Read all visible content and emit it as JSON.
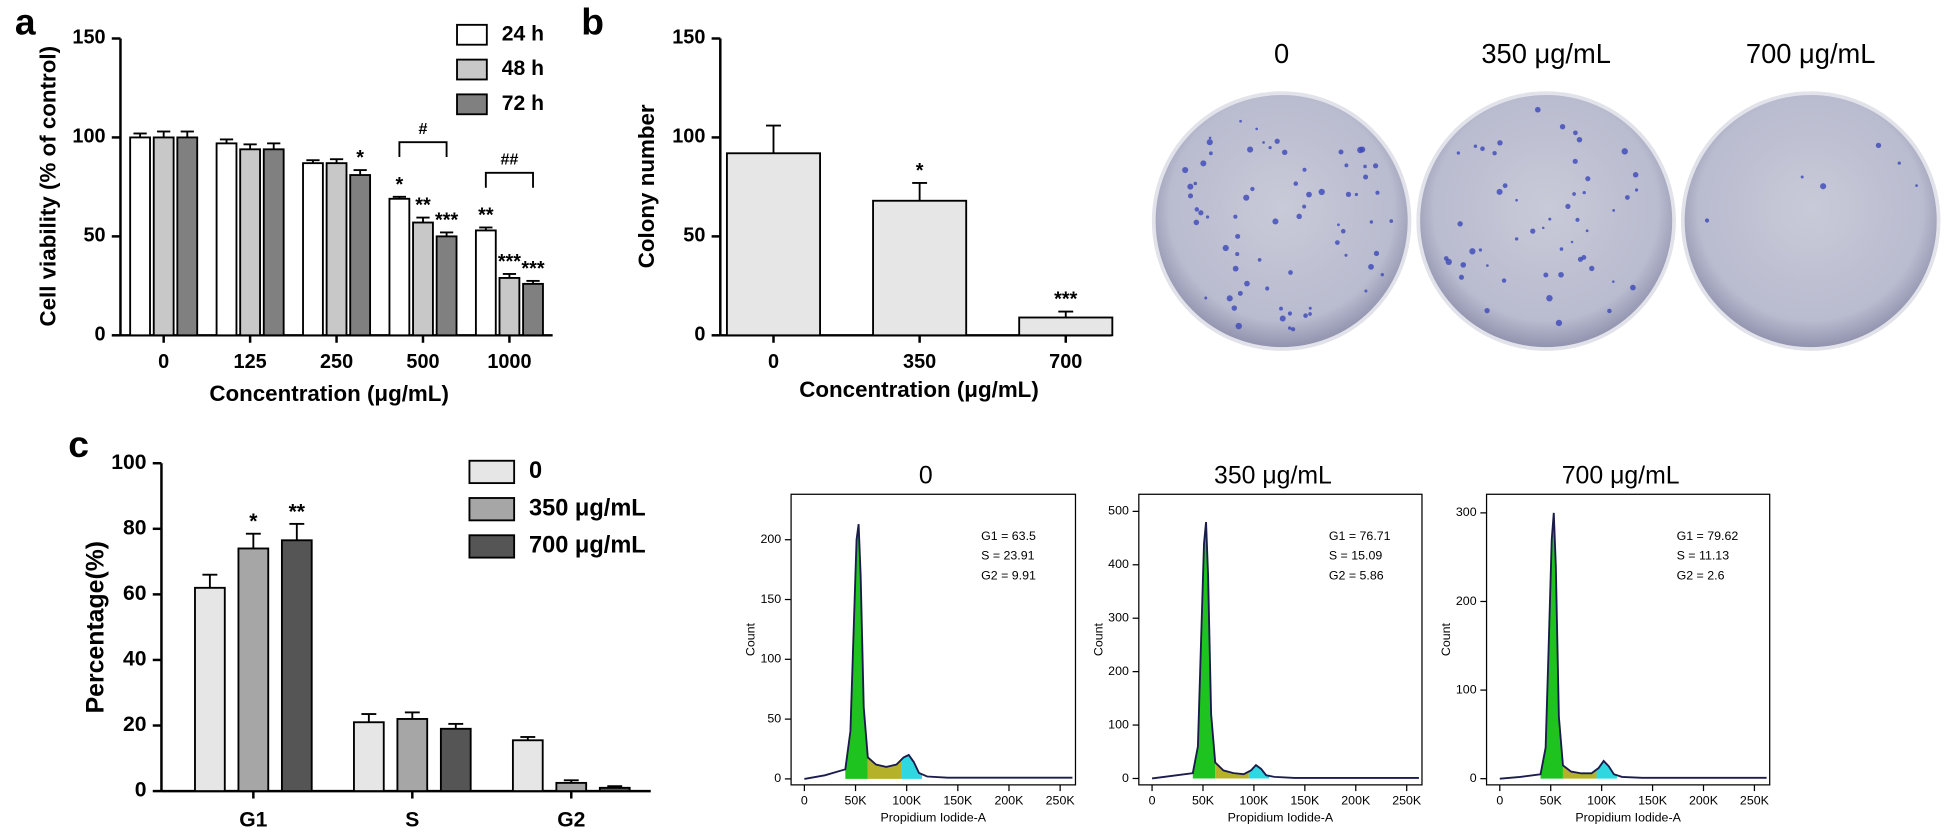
{
  "chart_data": [
    {
      "panel": "a",
      "type": "bar",
      "ylabel": "Cell viability (% of control)",
      "xlabel": "Concentration (μg/mL)",
      "categories": [
        "0",
        "125",
        "250",
        "500",
        "1000"
      ],
      "series": [
        {
          "name": "24 h",
          "color": "#ffffff",
          "values": [
            100,
            97,
            87,
            69,
            53
          ],
          "errors": [
            2,
            2,
            1.5,
            1,
            1.5
          ],
          "labels": [
            null,
            null,
            null,
            "*",
            "**"
          ]
        },
        {
          "name": "48 h",
          "color": "#c8c8c8",
          "values": [
            100,
            94,
            87,
            57,
            29
          ],
          "errors": [
            3,
            2.5,
            2,
            2.5,
            2
          ],
          "labels": [
            null,
            null,
            null,
            "**",
            "***"
          ]
        },
        {
          "name": "72 h",
          "color": "#808080",
          "values": [
            100,
            94,
            81,
            50,
            26
          ],
          "errors": [
            3,
            3,
            2.5,
            2,
            1.5
          ],
          "labels": [
            null,
            null,
            "*",
            "***",
            "***"
          ]
        }
      ],
      "bracket_labels": [
        null,
        null,
        null,
        "#",
        "##"
      ],
      "ylim": [
        0,
        150
      ],
      "yticks": [
        0,
        50,
        100,
        150
      ]
    },
    {
      "panel": "b",
      "type": "bar",
      "ylabel": "Colony number",
      "xlabel": "Concentration (μg/mL)",
      "categories": [
        "0",
        "350",
        "700"
      ],
      "series": [
        {
          "color": "#e6e6e6",
          "values": [
            92,
            68,
            9
          ],
          "errors": [
            14,
            9,
            3
          ],
          "labels": [
            null,
            "*",
            "***"
          ]
        }
      ],
      "ylim": [
        0,
        150
      ],
      "yticks": [
        0,
        50,
        100,
        150
      ]
    },
    {
      "panel": "c",
      "type": "bar",
      "ylabel": "Percentage(%)",
      "categories": [
        "G1",
        "S",
        "G2"
      ],
      "series": [
        {
          "name": "0",
          "color": "#e6e6e6",
          "values": [
            62,
            21,
            15.5
          ],
          "errors": [
            4,
            2.5,
            1
          ],
          "labels": [
            null,
            null,
            null
          ]
        },
        {
          "name": "350 μg/mL",
          "color": "#a6a6a6",
          "values": [
            74,
            22,
            2.5
          ],
          "errors": [
            4.5,
            2,
            0.8
          ],
          "labels": [
            "*",
            null,
            null
          ]
        },
        {
          "name": "700 μg/mL",
          "color": "#555555",
          "values": [
            76.5,
            19,
            1
          ],
          "errors": [
            5,
            1.5,
            0.5
          ],
          "labels": [
            "**",
            null,
            null
          ]
        }
      ],
      "ylim": [
        0,
        100
      ],
      "yticks": [
        0,
        20,
        40,
        60,
        80,
        100
      ]
    },
    {
      "type": "line",
      "title": "0",
      "ylabel": "Count",
      "xlabel": "Propidium Iodide-A",
      "annotations": [
        "G1  = 63.5",
        "S = 23.91",
        "G2  = 9.91"
      ],
      "x": [
        0,
        20000,
        40000,
        45000,
        48000,
        51000,
        53000,
        55000,
        58000,
        62000,
        70000,
        80000,
        90000,
        97000,
        102000,
        107000,
        112000,
        120000,
        140000,
        262000
      ],
      "series": [
        {
          "color": "#1b1b4d",
          "values": [
            0,
            3,
            8,
            40,
            120,
            200,
            213,
            170,
            60,
            18,
            12,
            10,
            12,
            18,
            20,
            14,
            5,
            2,
            1,
            1
          ]
        }
      ],
      "xlim": [
        -13000,
        265000
      ],
      "xticks": [
        0,
        {
          "value": 50000,
          "label": "50K"
        },
        {
          "value": 100000,
          "label": "100K"
        },
        {
          "value": 150000,
          "label": "150K"
        },
        {
          "value": 200000,
          "label": "200K"
        },
        {
          "value": 250000,
          "label": "250K"
        }
      ],
      "ylim": [
        -5,
        238
      ],
      "yticks": [
        0,
        50,
        100,
        150,
        200
      ]
    },
    {
      "type": "line",
      "title": "350 μg/mL",
      "ylabel": "Count",
      "xlabel": "Propidium Iodide-A",
      "annotations": [
        "G1  = 76.71",
        "S = 15.09",
        "G2  = 5.86"
      ],
      "x": [
        0,
        20000,
        40000,
        45000,
        48000,
        51000,
        53000,
        55000,
        58000,
        62000,
        70000,
        80000,
        90000,
        97000,
        102000,
        107000,
        112000,
        120000,
        140000,
        262000
      ],
      "series": [
        {
          "color": "#1b1b4d",
          "values": [
            0,
            5,
            10,
            60,
            250,
            440,
            480,
            380,
            120,
            30,
            15,
            10,
            8,
            15,
            25,
            18,
            6,
            3,
            1,
            1
          ]
        }
      ],
      "xlim": [
        -13000,
        265000
      ],
      "xticks": [
        0,
        {
          "value": 50000,
          "label": "50K"
        },
        {
          "value": 100000,
          "label": "100K"
        },
        {
          "value": 150000,
          "label": "150K"
        },
        {
          "value": 200000,
          "label": "200K"
        },
        {
          "value": 250000,
          "label": "250K"
        }
      ],
      "ylim": [
        -12,
        532
      ],
      "yticks": [
        0,
        100,
        200,
        300,
        400,
        500
      ]
    },
    {
      "type": "line",
      "title": "700 μg/mL",
      "ylabel": "Count",
      "xlabel": "Propidium Iodide-A",
      "annotations": [
        "G1  = 79.62",
        "S = 11.13",
        "G2  = 2.6"
      ],
      "x": [
        0,
        20000,
        40000,
        45000,
        48000,
        51000,
        53000,
        55000,
        58000,
        62000,
        70000,
        80000,
        90000,
        97000,
        102000,
        107000,
        112000,
        120000,
        140000,
        262000
      ],
      "series": [
        {
          "color": "#1b1b4d",
          "values": [
            0,
            2,
            5,
            35,
            150,
            270,
            300,
            240,
            70,
            15,
            8,
            6,
            6,
            12,
            20,
            14,
            5,
            2,
            1,
            1
          ]
        }
      ],
      "xlim": [
        -13000,
        265000
      ],
      "xticks": [
        0,
        {
          "value": 50000,
          "label": "50K"
        },
        {
          "value": 100000,
          "label": "100K"
        },
        {
          "value": 150000,
          "label": "150K"
        },
        {
          "value": 200000,
          "label": "200K"
        },
        {
          "value": 250000,
          "label": "250K"
        }
      ],
      "ylim": [
        -7,
        321
      ],
      "yticks": [
        0,
        100,
        200,
        300
      ]
    }
  ],
  "plates": {
    "labels": [
      "0",
      "350 μg/mL",
      "700 μg/mL"
    ]
  }
}
